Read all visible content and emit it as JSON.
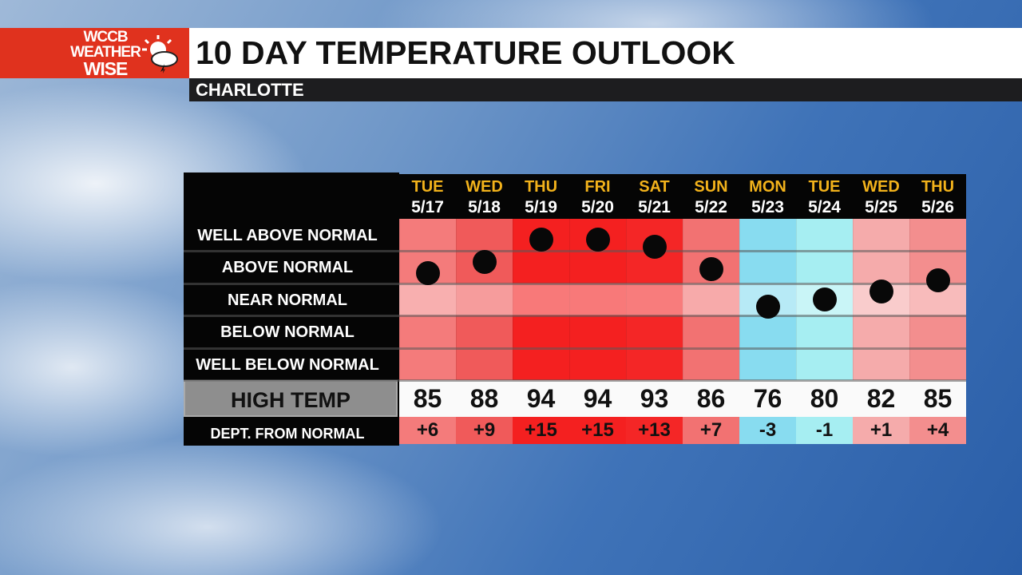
{
  "logo": {
    "line1": "WCCB",
    "line2": "WEATHER",
    "line3": "WISE"
  },
  "title": "10 DAY TEMPERATURE OUTLOOK",
  "location": "CHARLOTTE",
  "row_labels": [
    "WELL ABOVE NORMAL",
    "ABOVE NORMAL",
    "NEAR NORMAL",
    "BELOW NORMAL",
    "WELL BELOW NORMAL"
  ],
  "high_label": "HIGH TEMP",
  "dept_label": "DEPT. FROM NORMAL",
  "days": [
    {
      "day": "TUE",
      "date": "5/17",
      "high": 85,
      "dept": {
        "value": 6,
        "label": "+6"
      },
      "color": "#f47b7b"
    },
    {
      "day": "WED",
      "date": "5/18",
      "high": 88,
      "dept": {
        "value": 9,
        "label": "+9"
      },
      "color": "#f05a5a"
    },
    {
      "day": "THU",
      "date": "5/19",
      "high": 94,
      "dept": {
        "value": 15,
        "label": "+15"
      },
      "color": "#f42020"
    },
    {
      "day": "FRI",
      "date": "5/20",
      "high": 94,
      "dept": {
        "value": 15,
        "label": "+15"
      },
      "color": "#f42020"
    },
    {
      "day": "SAT",
      "date": "5/21",
      "high": 93,
      "dept": {
        "value": 13,
        "label": "+13"
      },
      "color": "#f42626"
    },
    {
      "day": "SUN",
      "date": "5/22",
      "high": 86,
      "dept": {
        "value": 7,
        "label": "+7"
      },
      "color": "#f27272"
    },
    {
      "day": "MON",
      "date": "5/23",
      "high": 76,
      "dept": {
        "value": -3,
        "label": "-3"
      },
      "color": "#88dcf0"
    },
    {
      "day": "TUE",
      "date": "5/24",
      "high": 80,
      "dept": {
        "value": -1,
        "label": "-1"
      },
      "color": "#a6eef2"
    },
    {
      "day": "WED",
      "date": "5/25",
      "high": 82,
      "dept": {
        "value": 1,
        "label": "+1"
      },
      "color": "#f5abab"
    },
    {
      "day": "THU",
      "date": "5/26",
      "high": 85,
      "dept": {
        "value": 4,
        "label": "+4"
      },
      "color": "#f38e8e"
    }
  ]
}
